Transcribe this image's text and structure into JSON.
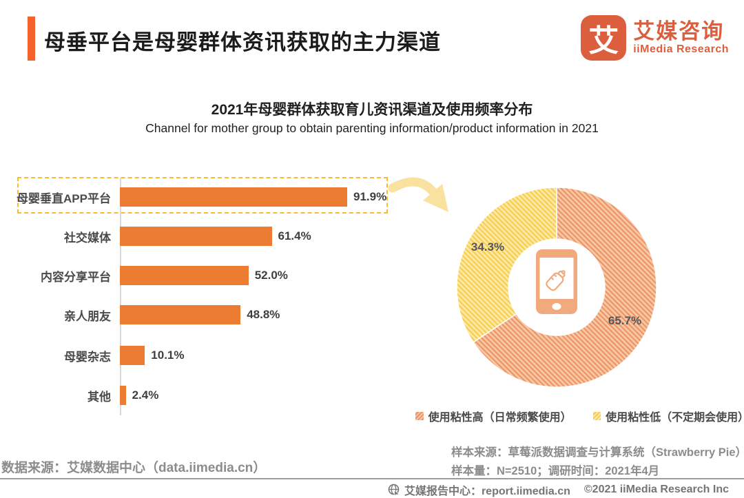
{
  "header": {
    "title": "母垂平台是母婴群体资讯获取的主力渠道",
    "logo": {
      "icon_char": "艾",
      "brand_cn": "艾媒咨询",
      "brand_en": "iiMedia Research"
    }
  },
  "chart": {
    "title_cn": "2021年母婴群体获取育儿资讯渠道及使用频率分布",
    "title_en": "Channel for mother group to obtain parenting information/product information in 2021",
    "donut": {
      "high_pct_label": "65.7%",
      "low_pct_label": "34.3%"
    },
    "legend": [
      {
        "name": "high",
        "label": "使用粘性高（日常频繁使用）"
      },
      {
        "name": "low",
        "label": "使用粘性低（不定期会使用）"
      }
    ]
  },
  "chart_data": [
    {
      "type": "bar",
      "orientation": "horizontal",
      "title": "2021年母婴群体获取育儿资讯渠道及使用频率分布",
      "subtitle": "Channel for mother group to obtain parenting information/product information in 2021",
      "categories": [
        "母婴垂直APP平台",
        "社交媒体",
        "内容分享平台",
        "亲人朋友",
        "母婴杂志",
        "其他"
      ],
      "values": [
        91.9,
        61.4,
        52.0,
        48.8,
        10.1,
        2.4
      ],
      "unit": "%",
      "xlim": [
        0,
        100
      ],
      "bar_color": "#EC7C31",
      "highlight_category": "母婴垂直APP平台",
      "grid": false
    },
    {
      "type": "pie",
      "subtype": "donut",
      "labels": [
        "使用粘性高（日常频繁使用）",
        "使用粘性低（不定期会使用）"
      ],
      "values": [
        65.7,
        34.3
      ],
      "unit": "%",
      "colors": [
        "#F2A97E",
        "#FBD25F"
      ],
      "start_angle_deg": 0,
      "direction": "clockwise",
      "legend_position": "bottom",
      "center_icon": "smartphone-with-baby-bottle"
    }
  ],
  "sources": {
    "data_source": "数据来源：艾媒数据中心（data.iimedia.cn）",
    "sample_source": "样本来源：草莓派数据调查与计算系统（Strawberry Pie）",
    "sample_info": "样本量：N=2510；调研时间：2021年4月"
  },
  "footer": {
    "report_center": "艾媒报告中心：report.iimedia.cn",
    "copyright": "©2021  iiMedia Research  Inc"
  },
  "colors": {
    "accent_orange": "#F4612B",
    "bar_orange": "#EC7C31",
    "logo_orange": "#DC5F3D",
    "highlight_gold": "#FBBA2B",
    "donut_high": "#F2A97E",
    "donut_low": "#FBD25F",
    "text_gray": "#8C8C8C"
  }
}
